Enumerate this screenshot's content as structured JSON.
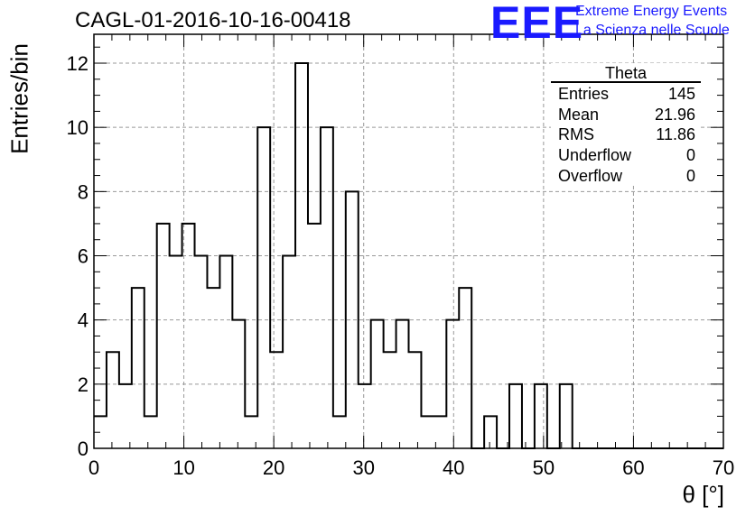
{
  "title": "CAGL-01-2016-10-16-00418",
  "logo": {
    "mark": "EEE",
    "line1": "Extreme Energy Events",
    "line2": "La Scienza nelle Scuole"
  },
  "stats": {
    "name": "Theta",
    "rows": [
      {
        "label": "Entries",
        "value": "145"
      },
      {
        "label": "Mean",
        "value": "21.96"
      },
      {
        "label": "RMS",
        "value": "11.86"
      },
      {
        "label": "Underflow",
        "value": "0"
      },
      {
        "label": "Overflow",
        "value": "0"
      }
    ]
  },
  "chart_data": {
    "type": "bar",
    "histogram": true,
    "title": "CAGL-01-2016-10-16-00418",
    "xlabel": "θ [°]",
    "ylabel": "Entries/bin",
    "xlim": [
      0,
      70
    ],
    "ylim": [
      0,
      12.9
    ],
    "bin_width": 1.4,
    "bin_edges_start": 0,
    "values": [
      1,
      3,
      2,
      5,
      1,
      7,
      6,
      7,
      6,
      5,
      6,
      4,
      1,
      10,
      3,
      6,
      12,
      7,
      10,
      1,
      8,
      2,
      4,
      3,
      4,
      3,
      1,
      1,
      4,
      5,
      0,
      1,
      0,
      2,
      0,
      2,
      0,
      2,
      0,
      0,
      0,
      0,
      0,
      0,
      0,
      0,
      0,
      0,
      0,
      0
    ],
    "x_ticks": [
      "0",
      "10",
      "20",
      "30",
      "40",
      "50",
      "60",
      "70"
    ],
    "y_ticks": [
      "0",
      "2",
      "4",
      "6",
      "8",
      "10",
      "12"
    ],
    "grid": true,
    "line_color": "#000000"
  }
}
